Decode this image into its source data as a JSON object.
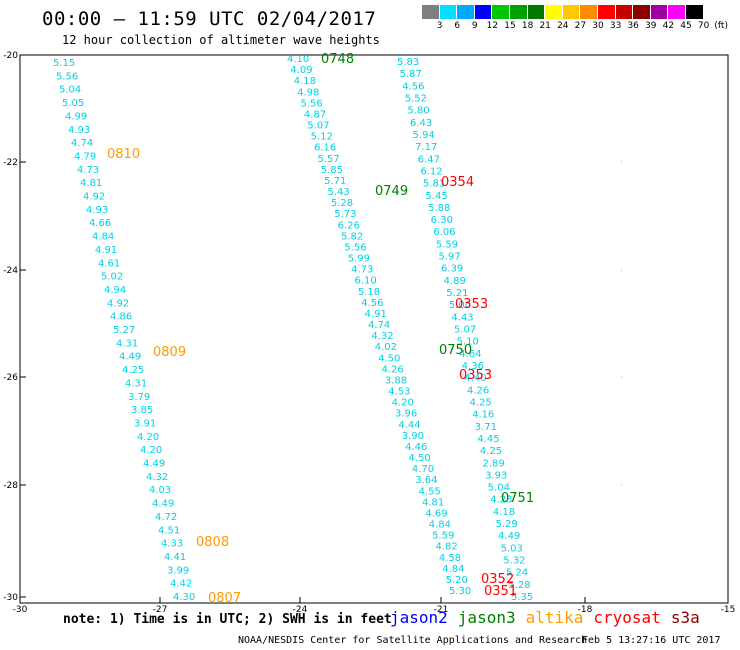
{
  "header": {
    "title": "00:00 – 11:59 UTC 02/04/2017",
    "subtitle": "12 hour collection of altimeter wave heights"
  },
  "colorbar": {
    "colors": [
      "#7f7f7f",
      "#00e0ff",
      "#00a8ff",
      "#0000ff",
      "#00c800",
      "#00a000",
      "#007800",
      "#ffff00",
      "#ffc800",
      "#ff8c00",
      "#ff0000",
      "#c80000",
      "#8c0000",
      "#a000a0",
      "#ff00ff",
      "#000000"
    ],
    "labels": [
      "3",
      "6",
      "9",
      "12",
      "15",
      "18",
      "21",
      "24",
      "27",
      "30",
      "33",
      "36",
      "39",
      "42",
      "45",
      "70",
      "(ft)"
    ]
  },
  "axes": {
    "y_ticks": [
      "-20",
      "-22",
      "-24",
      "-26",
      "-28",
      "-30"
    ],
    "x_ticks": [
      "-30",
      "-27",
      "-24",
      "-21",
      "-18",
      "-15"
    ]
  },
  "colors": {
    "swh": "#00d0e8",
    "jason2": "#0000ff",
    "jason3": "#008000",
    "altika": "#ff9900",
    "cryosat": "#ff0000",
    "s3a": "#8b0000",
    "frame": "#000000"
  },
  "tracks": {
    "track1": [
      "5.15",
      "5.56",
      "5.04",
      "5.05",
      "4.99",
      "4.93",
      "4.74",
      "4.79",
      "4.73",
      "4.81",
      "4.92",
      "4.93",
      "4.66",
      "4.84",
      "4.91",
      "4.61",
      "5.02",
      "4.94",
      "4.92",
      "4.86",
      "5.27",
      "4.31",
      "4.49",
      "4.25",
      "4.31",
      "3.79",
      "3.85",
      "3.91",
      "4.20",
      "4.20",
      "4.49",
      "4.32",
      "4.03",
      "4.49",
      "4.72",
      "4.51",
      "4.33",
      "4.41",
      "3.99",
      "4.42",
      "4.30"
    ],
    "track2": [
      "4.10",
      "4.09",
      "4.18",
      "4.98",
      "5.56",
      "4.87",
      "5.07",
      "5.12",
      "6.16",
      "5.57",
      "5.85",
      "5.71",
      "5.43",
      "5.28",
      "5.73",
      "6.26",
      "5.82",
      "5.56",
      "5.99",
      "4.73",
      "6.10",
      "5.18",
      "4.56",
      "4.91",
      "4.74",
      "4.32",
      "4.02",
      "4.50",
      "4.26",
      "3.88",
      "4.53",
      "4.20",
      "3.96",
      "4.44",
      "3.90",
      "4.46",
      "4.50",
      "4.70",
      "3.64",
      "4.55",
      "4.81",
      "4.69",
      "4.84",
      "5.59",
      "4.82",
      "4.58",
      "4.84",
      "5.20",
      "5.30"
    ],
    "track3": [
      "5.83",
      "5.87",
      "4.56",
      "5.52",
      "5.80",
      "6.43",
      "5.94",
      "7.17",
      "6.47",
      "6.12",
      "5.81",
      "5.45",
      "5.88",
      "6.30",
      "6.06",
      "5.59",
      "5.97",
      "6.39",
      "4.89",
      "5.21",
      "5.00",
      "4.43",
      "5.07",
      "5.10",
      "4.64",
      "4.36",
      "4.40",
      "4.26",
      "4.25",
      "4.16",
      "3.71",
      "4.45",
      "4.25",
      "2.89",
      "3.93",
      "5.04",
      "4.23",
      "4.18",
      "5.29",
      "4.49",
      "5.03",
      "5.32",
      "5.24",
      "5.28",
      "5.35"
    ]
  },
  "time_labels": {
    "t0810": "0810",
    "t0809": "0809",
    "t0808": "0808",
    "t0807": "0807",
    "t0748": "0748",
    "t0749": "0749",
    "t0750": "0750",
    "t0751": "0751",
    "t0354": "0354",
    "t0353a": "0353",
    "t0353b": "0353",
    "t0352": "0352",
    "t0351": "0351"
  },
  "footer": {
    "note": "note: 1) Time is in UTC; 2) SWH is in feet",
    "satellites": [
      "jason2",
      "jason3",
      "altika",
      "cryosat",
      "s3a"
    ],
    "credit": "NOAA/NESDIS Center for Satellite Applications and Research",
    "generated": "Feb  5 13:27:16 UTC 2017"
  }
}
